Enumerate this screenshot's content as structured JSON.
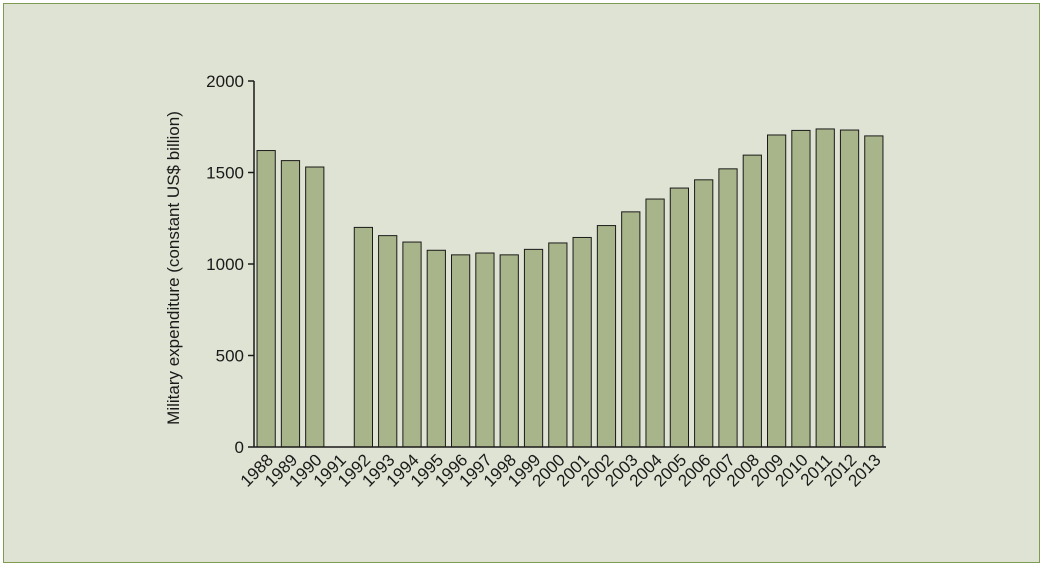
{
  "chart_data": {
    "type": "bar",
    "title": "",
    "xlabel": "",
    "ylabel": "Military expenditure (constant US$ billion)",
    "ylim": [
      0,
      2000
    ],
    "yticks": [
      0,
      500,
      1000,
      1500,
      2000
    ],
    "categories": [
      "1988",
      "1989",
      "1990",
      "1991",
      "1992",
      "1993",
      "1994",
      "1995",
      "1996",
      "1997",
      "1998",
      "1999",
      "2000",
      "2001",
      "2002",
      "2003",
      "2004",
      "2005",
      "2006",
      "2007",
      "2008",
      "2009",
      "2010",
      "2011",
      "2012",
      "2013"
    ],
    "values": [
      1620,
      1565,
      1530,
      null,
      1200,
      1155,
      1120,
      1075,
      1050,
      1060,
      1050,
      1080,
      1115,
      1145,
      1210,
      1285,
      1355,
      1415,
      1460,
      1520,
      1595,
      1705,
      1730,
      1738,
      1732,
      1700
    ],
    "grid": false,
    "legend": "none",
    "colors": {
      "bar_fill": "#a8b58a",
      "bar_stroke": "#1a1a1a",
      "panel_bg": "#dfe3d3",
      "panel_border": "#7f9a52"
    }
  }
}
